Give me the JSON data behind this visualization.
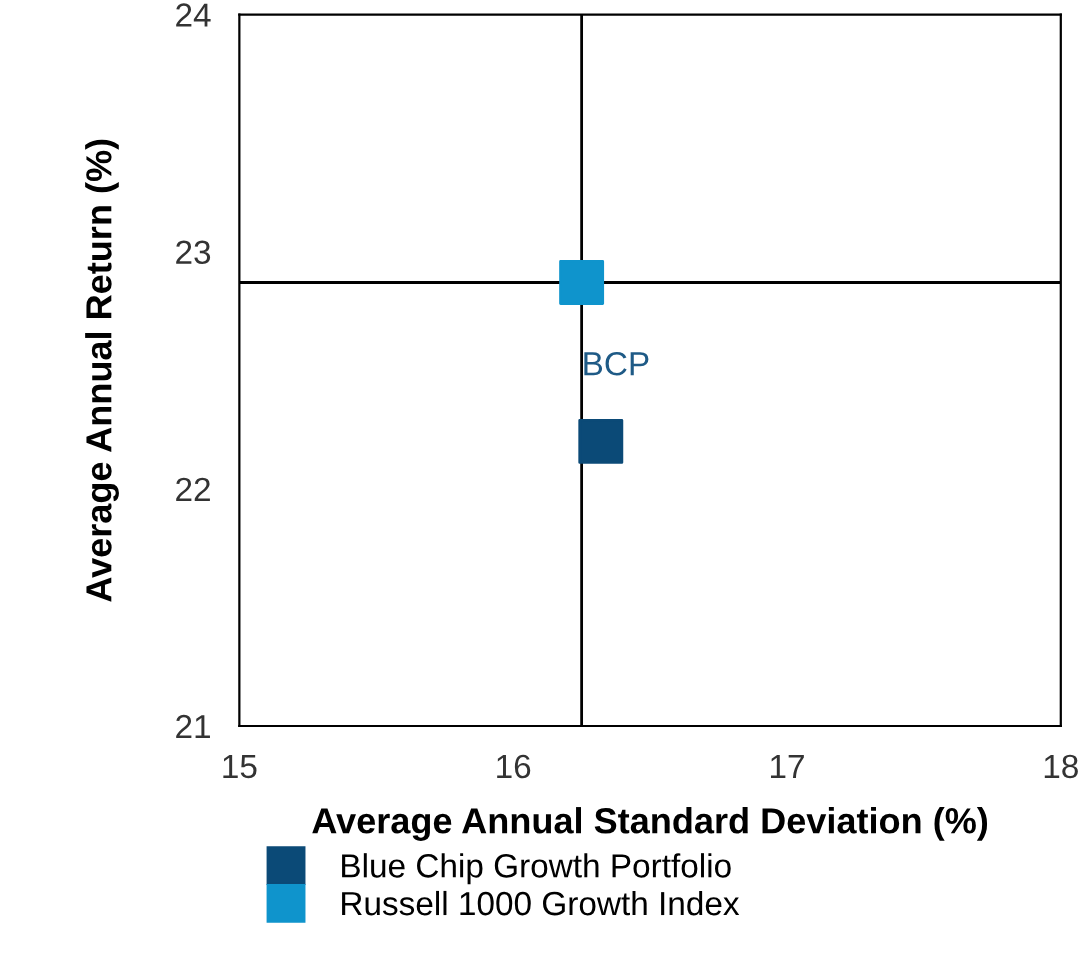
{
  "chart_data": {
    "type": "scatter",
    "xlabel": "Average Annual Standard Deviation (%)",
    "ylabel": "Average Annual Return (%)",
    "series": [
      {
        "name": "Blue Chip Growth Portfolio",
        "color": "#0b4a77",
        "x": [
          16.32
        ],
        "values": [
          22.2
        ]
      },
      {
        "name": "Russell 1000 Growth Index",
        "color": "#0f94cc",
        "x": [
          16.25
        ],
        "values": [
          22.87
        ]
      }
    ],
    "xlim": [
      15,
      18
    ],
    "xticks": [
      15,
      16,
      17,
      18
    ],
    "ylim": [
      21,
      24
    ],
    "yticks": [
      21,
      22,
      23,
      24
    ],
    "ref_lines": [
      {
        "axis": "x",
        "value": 16.25,
        "color": "#000000"
      },
      {
        "axis": "y",
        "value": 22.87,
        "color": "#000000"
      }
    ],
    "annotations": [
      {
        "text": "BCP",
        "x": 16.25,
        "y": 22.45
      }
    ],
    "marker": "square",
    "grid": false,
    "legend": "bottom"
  }
}
